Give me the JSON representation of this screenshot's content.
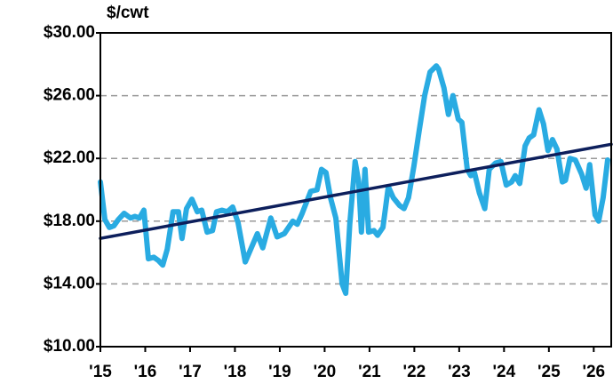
{
  "chart_data": {
    "type": "line",
    "y_axis_label": "$/cwt",
    "xlim": [
      2015,
      2026.39
    ],
    "ylim": [
      10,
      30
    ],
    "xticks": [
      {
        "value": 2015,
        "label": "'15"
      },
      {
        "value": 2016,
        "label": "'16"
      },
      {
        "value": 2017,
        "label": "'17"
      },
      {
        "value": 2018,
        "label": "'18"
      },
      {
        "value": 2019,
        "label": "'19"
      },
      {
        "value": 2020,
        "label": "'20"
      },
      {
        "value": 2021,
        "label": "'21"
      },
      {
        "value": 2022,
        "label": "'22"
      },
      {
        "value": 2023,
        "label": "'23"
      },
      {
        "value": 2024,
        "label": "'24"
      },
      {
        "value": 2025,
        "label": "'25"
      },
      {
        "value": 2026,
        "label": "'26"
      }
    ],
    "yticks": [
      {
        "value": 10,
        "label": "$10.00"
      },
      {
        "value": 14,
        "label": "$14.00"
      },
      {
        "value": 18,
        "label": "$18.00"
      },
      {
        "value": 22,
        "label": "$22.00"
      },
      {
        "value": 26,
        "label": "$26.00"
      },
      {
        "value": 30,
        "label": "$30.00"
      }
    ],
    "grid": true,
    "series": [
      {
        "color": "#29abe2",
        "x": [
          2015.0,
          2015.1,
          2015.2,
          2015.3,
          2015.4,
          2015.53,
          2015.67,
          2015.77,
          2015.87,
          2015.97,
          2016.07,
          2016.19,
          2016.29,
          2016.39,
          2016.49,
          2016.62,
          2016.74,
          2016.82,
          2016.92,
          2017.04,
          2017.16,
          2017.26,
          2017.38,
          2017.5,
          2017.59,
          2017.71,
          2017.83,
          2017.95,
          2018.07,
          2018.23,
          2018.5,
          2018.62,
          2018.8,
          2018.94,
          2019.1,
          2019.29,
          2019.39,
          2019.5,
          2019.69,
          2019.83,
          2019.93,
          2020.03,
          2020.13,
          2020.25,
          2020.39,
          2020.47,
          2020.56,
          2020.68,
          2020.76,
          2020.82,
          2020.9,
          2020.98,
          2021.1,
          2021.18,
          2021.3,
          2021.42,
          2021.53,
          2021.67,
          2021.77,
          2021.87,
          2021.99,
          2022.11,
          2022.23,
          2022.35,
          2022.49,
          2022.54,
          2022.66,
          2022.76,
          2022.86,
          2022.98,
          2023.06,
          2023.18,
          2023.26,
          2023.34,
          2023.45,
          2023.57,
          2023.67,
          2023.81,
          2023.93,
          2024.05,
          2024.17,
          2024.25,
          2024.35,
          2024.47,
          2024.56,
          2024.66,
          2024.78,
          2024.88,
          2024.98,
          2025.08,
          2025.18,
          2025.3,
          2025.37,
          2025.47,
          2025.59,
          2025.73,
          2025.83,
          2025.91,
          2026.03,
          2026.11,
          2026.21,
          2026.31
        ],
        "values": [
          20.5,
          18.1,
          17.6,
          17.7,
          18.1,
          18.5,
          18.2,
          18.3,
          18.2,
          18.7,
          15.6,
          15.7,
          15.5,
          15.2,
          16.2,
          18.6,
          18.6,
          16.9,
          18.8,
          19.4,
          18.6,
          18.7,
          17.3,
          17.4,
          18.6,
          18.7,
          18.6,
          18.9,
          17.9,
          15.4,
          17.2,
          16.3,
          18.2,
          17.0,
          17.2,
          18.0,
          17.8,
          18.5,
          19.9,
          20.0,
          21.3,
          21.1,
          19.5,
          18.2,
          14.0,
          13.4,
          17.8,
          21.8,
          20.5,
          17.3,
          21.3,
          17.3,
          17.4,
          17.1,
          17.6,
          20.2,
          19.5,
          19.0,
          18.8,
          19.5,
          21.5,
          23.8,
          26.0,
          27.5,
          27.9,
          27.7,
          26.5,
          24.8,
          26.0,
          24.5,
          24.3,
          21.3,
          20.9,
          21.1,
          19.8,
          18.8,
          21.3,
          21.7,
          21.8,
          20.3,
          20.5,
          20.9,
          20.4,
          22.8,
          23.3,
          23.5,
          25.1,
          24.2,
          22.5,
          23.2,
          22.6,
          20.5,
          20.6,
          22.0,
          21.9,
          21.0,
          20.1,
          21.6,
          18.4,
          18.0,
          19.5,
          21.9
        ]
      },
      {
        "color": "#0d1f5c",
        "x": [
          2015,
          2026.39
        ],
        "values": [
          16.9,
          22.9
        ]
      }
    ]
  }
}
